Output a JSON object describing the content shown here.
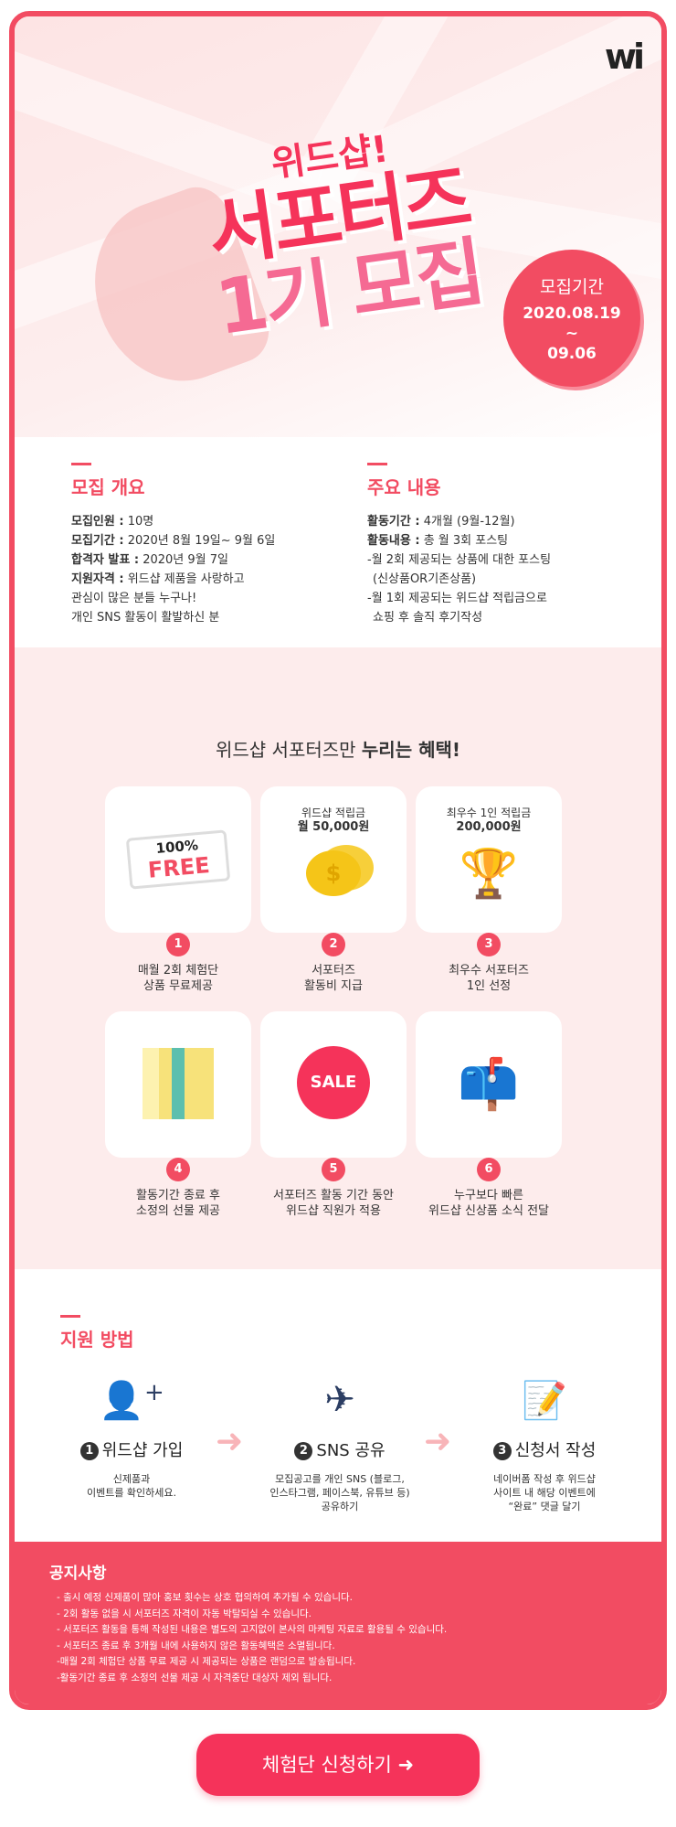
{
  "brand": {
    "logo": "wi",
    "accent": "#f24c62"
  },
  "hero": {
    "subtitle": "위드샵!",
    "title_line1": "서포터즈",
    "title_line2": "1기 모집",
    "period_label": "모집기간",
    "period_start": "2020.08.19",
    "period_sep": "~",
    "period_end": "09.06"
  },
  "overview": {
    "title": "모집 개요",
    "items": [
      {
        "k": "모집인원 :",
        "v": " 10명"
      },
      {
        "k": "모집기간 :",
        "v": " 2020년 8월 19일~ 9월 6일"
      },
      {
        "k": "합격자 발표 :",
        "v": " 2020년 9월 7일"
      },
      {
        "k": "지원자격 :",
        "v": " 위드샵 제품을 사랑하고"
      }
    ],
    "line5": "관심이 많은 분들 누구나!",
    "line6": "개인 SNS 활동이 활발하신 분"
  },
  "main": {
    "title": "주요 내용",
    "items": [
      {
        "k": "활동기간 :",
        "v": " 4개월 (9월-12월)"
      },
      {
        "k": "활동내용 :",
        "v": " 총 월 3회 포스팅"
      }
    ],
    "lines": [
      "-월 2회 제공되는 상품에 대한 포스팅",
      "(신상품OR기존상품)",
      "-월 1회 제공되는 위드샵 적립금으로",
      "쇼핑 후 솔직 후기작성"
    ]
  },
  "benefits": {
    "title_normal": "위드샵 서포터즈만 ",
    "title_bold": "누리는 혜택!",
    "items": [
      {
        "num": "1",
        "caption": "",
        "caption_bold": "",
        "badge_top": "100%",
        "badge_main": "FREE",
        "label1": "매월 2회 체험단",
        "label2": "상품 무료제공"
      },
      {
        "num": "2",
        "caption": "위드샵 적립금",
        "caption_bold": "월 50,000원",
        "label1": "서포터즈",
        "label2": "활동비 지급"
      },
      {
        "num": "3",
        "caption": "최우수 1인 적립금",
        "caption_bold": "200,000원",
        "label1": "최우수 서포터즈",
        "label2": "1인 선정"
      },
      {
        "num": "4",
        "label1": "활동기간 종료 후",
        "label2": "소정의 선물 제공"
      },
      {
        "num": "5",
        "sale": "SALE",
        "label1": "서포터즈 활동 기간 동안",
        "label2": "위드샵 직원가 적용"
      },
      {
        "num": "6",
        "label1": "누구보다 빠른",
        "label2": "위드샵 신상품 소식 전달"
      }
    ]
  },
  "apply": {
    "title": "지원 방법",
    "steps": [
      {
        "num": "1",
        "title": "위드샵 가입",
        "desc1": "신제품과",
        "desc2": "이벤트를 확인하세요.",
        "desc3": "",
        "icon": "user-plus-icon"
      },
      {
        "num": "2",
        "title": "SNS 공유",
        "desc1": "모집공고를 개인 SNS (블로그,",
        "desc2": "인스타그램, 페이스북, 유튜브 등)",
        "desc3": "공유하기",
        "icon": "paper-plane-icon"
      },
      {
        "num": "3",
        "title": "신청서 작성",
        "desc1": "네이버폼 작성 후 위드샵",
        "desc2": "사이트 내 해당 이벤트에",
        "desc3": "“완료” 댓글 달기",
        "icon": "document-pen-icon"
      }
    ]
  },
  "notice": {
    "title": "공지사항",
    "items": [
      "- 출시 예정 신제품이 많아 홍보 횟수는 상호 협의하여 추가될 수 있습니다.",
      "- 2회 활동 없을 시 서포터즈 자격이 자동 박탈되실 수 있습니다.",
      "- 서포터즈 활동을 통해 작성된 내용은 별도의 고지없이 본사의 마케팅 자료로 활용될 수 있습니다.",
      "- 서포터즈 종료 후 3개월 내에 사용하지 않은 활동혜택은 소멸됩니다.",
      "-매월 2회 체험단 상품 무료 제공 시 제공되는 상품은 랜덤으로 발송됩니다.",
      "-활동기간 종료 후 소정의 선물 제공 시 자격중단 대상자 제외 됩니다."
    ]
  },
  "cta": {
    "label": "체험단 신청하기 ➜"
  }
}
